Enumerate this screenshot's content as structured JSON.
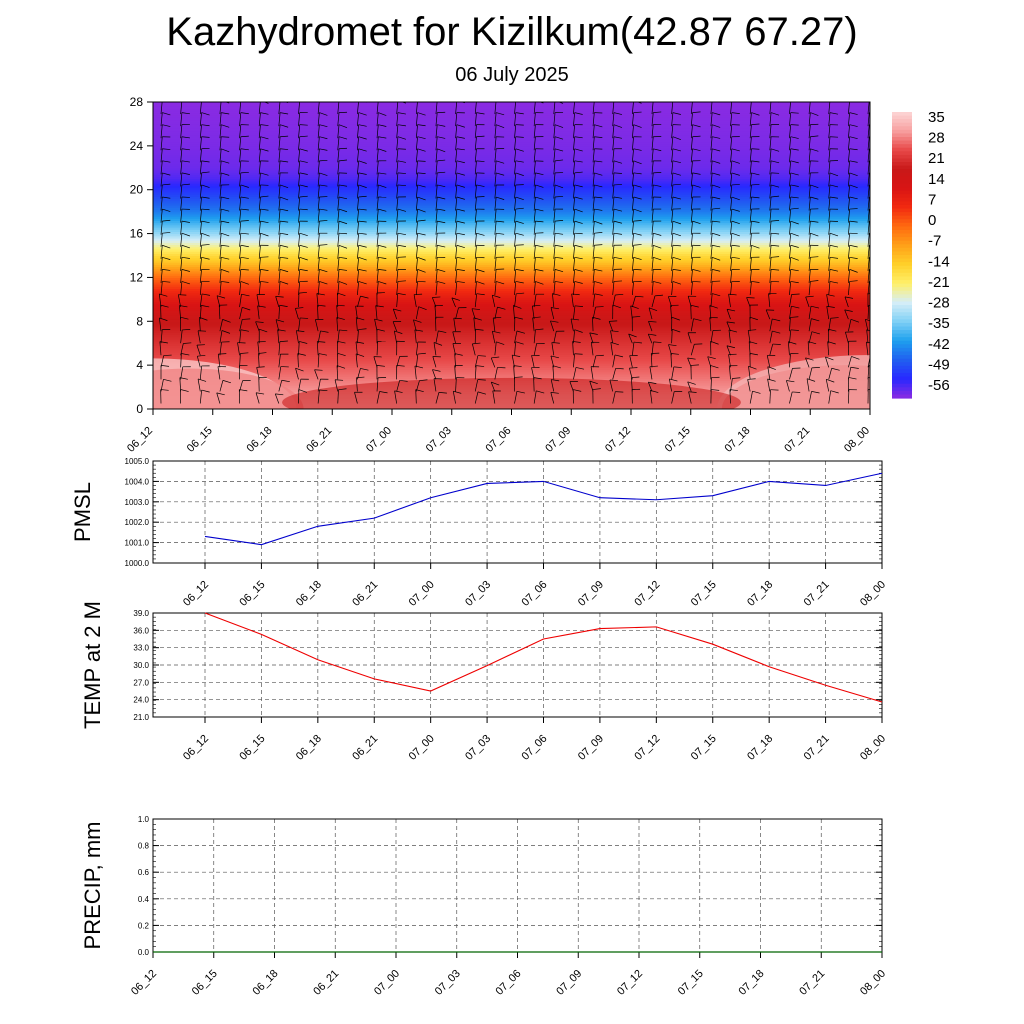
{
  "header": {
    "title": "Kazhydromet for Kizilkum(42.87 67.27)",
    "subtitle": "06 July 2025"
  },
  "chart_data": [
    {
      "type": "heatmap",
      "name": "temperature-cross-section",
      "x_labels": [
        "06_12",
        "06_15",
        "06_18",
        "06_21",
        "07_00",
        "07_03",
        "07_06",
        "07_09",
        "07_12",
        "07_15",
        "07_18",
        "07_21",
        "08_00"
      ],
      "y_ticks": [
        0,
        4,
        8,
        12,
        16,
        20,
        24,
        28
      ],
      "ylim": [
        0,
        28
      ],
      "colorbar_labels": [
        "35",
        "28",
        "21",
        "14",
        "7",
        "0",
        "-7",
        "-14",
        "-21",
        "-28",
        "-35",
        "-42",
        "-49",
        "-56"
      ],
      "colorbar_range": [
        -60,
        38
      ],
      "colorbar_colors": [
        "#8a2be2",
        "#2828ff",
        "#2060f0",
        "#1ea0ee",
        "#7fd0f5",
        "#d6eef8",
        "#fff06a",
        "#ffd02a",
        "#ffa018",
        "#ff6a10",
        "#f22a10",
        "#d81414",
        "#c81818",
        "#e84848",
        "#f7a0a0",
        "#fcd6d6"
      ],
      "profile_levels": [
        0,
        2,
        4,
        6,
        8,
        10,
        12,
        13.5,
        14,
        16,
        18,
        20,
        21,
        22,
        24,
        28
      ],
      "profile_temps": [
        34,
        30,
        26,
        22,
        18,
        10,
        -1,
        -13,
        -16,
        -32,
        -44,
        -52,
        -56,
        -58,
        -59,
        -60
      ],
      "wind_barbs": true
    },
    {
      "type": "line",
      "name": "pmsl",
      "ylabel": "PMSL",
      "x": [
        "06_12",
        "06_15",
        "06_18",
        "06_21",
        "07_00",
        "07_03",
        "07_06",
        "07_09",
        "07_12",
        "07_15",
        "07_18",
        "07_21",
        "08_00"
      ],
      "y_tick_labels": [
        "1005.0",
        "1004.0",
        "1003.0",
        "1002.0",
        "1001.0",
        "1000.0"
      ],
      "ylim": [
        1000,
        1005
      ],
      "series": [
        {
          "values": [
            1001.3,
            1000.9,
            1001.8,
            1002.2,
            1003.2,
            1003.9,
            1004.0,
            1003.2,
            1003.1,
            1003.3,
            1004.0,
            1003.8,
            1004.4
          ],
          "color": "#0000cc"
        }
      ],
      "grid": true
    },
    {
      "type": "line",
      "name": "temp-2m",
      "ylabel": "TEMP at 2 M",
      "x": [
        "06_12",
        "06_15",
        "06_18",
        "06_21",
        "07_00",
        "07_03",
        "07_06",
        "07_09",
        "07_12",
        "07_15",
        "07_18",
        "07_21",
        "08_00"
      ],
      "y_tick_labels": [
        "39.0",
        "36.0",
        "33.0",
        "30.0",
        "27.0",
        "24.0",
        "21.0"
      ],
      "ylim": [
        21,
        39
      ],
      "series": [
        {
          "values": [
            39.0,
            35.3,
            30.9,
            27.6,
            25.5,
            29.9,
            34.5,
            36.3,
            36.6,
            33.6,
            29.7,
            26.5,
            23.6
          ],
          "color": "#ee0000"
        }
      ],
      "grid": true
    },
    {
      "type": "bar",
      "name": "precip",
      "ylabel": "PRECIP, mm",
      "x": [
        "06_12",
        "06_15",
        "06_18",
        "06_21",
        "07_00",
        "07_03",
        "07_06",
        "07_09",
        "07_12",
        "07_15",
        "07_18",
        "07_21",
        "08_00"
      ],
      "y_tick_labels": [
        "1.0",
        "0.8",
        "0.6",
        "0.4",
        "0.2",
        "0.0"
      ],
      "ylim": [
        0,
        1
      ],
      "values": [
        0,
        0,
        0,
        0,
        0,
        0,
        0,
        0,
        0,
        0,
        0,
        0,
        0
      ],
      "grid": true
    }
  ]
}
